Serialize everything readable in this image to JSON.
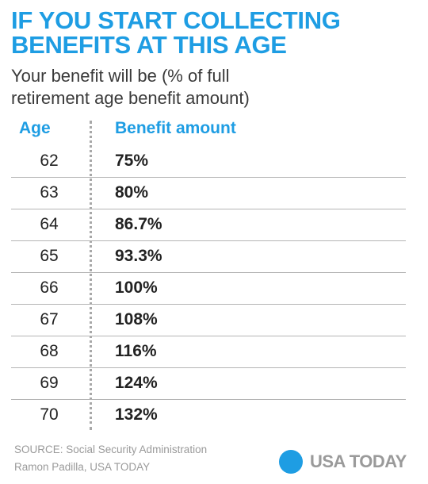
{
  "header": {
    "title_line1": "IF YOU START COLLECTING",
    "title_line2": "BENEFITS AT THIS AGE",
    "subtitle_line1": "Your benefit will be (% of full",
    "subtitle_line2": "retirement age benefit amount)"
  },
  "chart_data": {
    "type": "table",
    "columns": [
      "Age",
      "Benefit amount"
    ],
    "rows": [
      [
        "62",
        "75%"
      ],
      [
        "63",
        "80%"
      ],
      [
        "64",
        "86.7%"
      ],
      [
        "65",
        "93.3%"
      ],
      [
        "66",
        "100%"
      ],
      [
        "67",
        "108%"
      ],
      [
        "68",
        "116%"
      ],
      [
        "69",
        "124%"
      ],
      [
        "70",
        "132%"
      ]
    ]
  },
  "footer": {
    "source": "SOURCE:  Social Security Administration",
    "credit": "Ramon Padilla, USA TODAY",
    "logo_text": "USA TODAY"
  },
  "colors": {
    "accent": "#1e9de3",
    "text": "#222222",
    "muted": "#9a9a9a"
  }
}
